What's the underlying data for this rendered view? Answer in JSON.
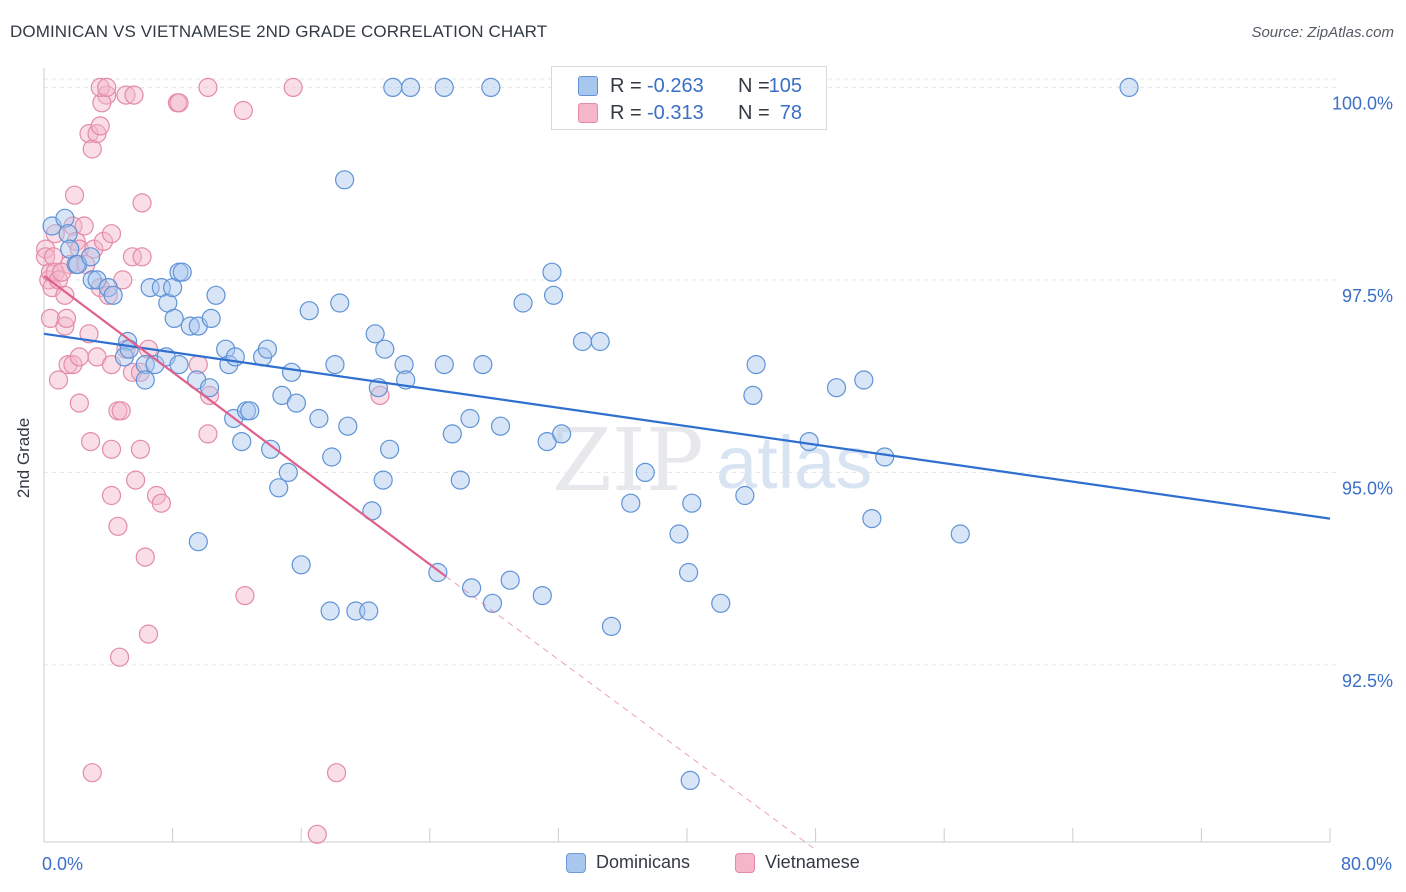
{
  "header": {
    "title": "DOMINICAN VS VIETNAMESE 2ND GRADE CORRELATION CHART",
    "source": "Source: ZipAtlas.com"
  },
  "watermark": "ZIPatlas",
  "stats": [
    {
      "label_r": "R =",
      "r": "-0.263",
      "label_n": "N =",
      "n": "105",
      "color": "#a9c6ee"
    },
    {
      "label_r": "R =",
      "r": "-0.313",
      "label_n": "N =",
      "n": "78",
      "color": "#f5b6c9"
    }
  ],
  "legend": {
    "items": [
      {
        "label": "Dominicans",
        "color": "#a9c6ee",
        "border": "#6b9bd8"
      },
      {
        "label": "Vietnamese",
        "color": "#f5b6c9",
        "border": "#e48aa6"
      }
    ]
  },
  "colors": {
    "blue_fill": "#a9c6ee",
    "blue_stroke": "#5f93d6",
    "blue_line": "#2f6fd0",
    "pink_fill": "#f5b6c9",
    "pink_stroke": "#e38ba7",
    "pink_line": "#e0608c",
    "tick_text": "#3a6fc8",
    "grid": "#e3e6ea"
  },
  "chart_data": {
    "type": "scatter",
    "title": "DOMINICAN VS VIETNAMESE 2ND GRADE CORRELATION CHART",
    "xlabel": "",
    "ylabel": "2nd Grade",
    "xlim": [
      0,
      80
    ],
    "ylim": [
      90.2,
      100.2
    ],
    "x_tick_labels": [
      {
        "value": 0,
        "label": "0.0%"
      },
      {
        "value": 80,
        "label": "80.0%"
      }
    ],
    "x_minor_ticks": [
      0,
      8,
      16,
      24,
      32,
      40,
      48,
      56,
      64,
      72,
      80
    ],
    "y_ticks": [
      {
        "value": 92.5,
        "label": "92.5%"
      },
      {
        "value": 95.0,
        "label": "95.0%"
      },
      {
        "value": 97.5,
        "label": "97.5%"
      },
      {
        "value": 100.0,
        "label": "100.0%"
      }
    ],
    "grid": true,
    "legend_position": "bottom",
    "series": [
      {
        "name": "Dominicans",
        "points": [
          [
            0.5,
            98.2
          ],
          [
            1.3,
            98.3
          ],
          [
            1.5,
            98.1
          ],
          [
            1.6,
            97.9
          ],
          [
            2.0,
            97.7
          ],
          [
            2.1,
            97.7
          ],
          [
            2.9,
            97.8
          ],
          [
            3.0,
            97.5
          ],
          [
            3.3,
            97.5
          ],
          [
            4.0,
            97.4
          ],
          [
            4.3,
            97.3
          ],
          [
            5.2,
            96.7
          ],
          [
            5.0,
            96.5
          ],
          [
            5.3,
            96.6
          ],
          [
            6.3,
            96.4
          ],
          [
            6.3,
            96.2
          ],
          [
            6.9,
            96.4
          ],
          [
            7.6,
            96.5
          ],
          [
            6.6,
            97.4
          ],
          [
            7.3,
            97.4
          ],
          [
            7.7,
            97.2
          ],
          [
            8.0,
            97.4
          ],
          [
            8.1,
            97.0
          ],
          [
            8.4,
            97.6
          ],
          [
            8.6,
            97.6
          ],
          [
            8.4,
            96.4
          ],
          [
            9.1,
            96.9
          ],
          [
            9.6,
            96.9
          ],
          [
            10.4,
            97.0
          ],
          [
            10.7,
            97.3
          ],
          [
            11.3,
            96.6
          ],
          [
            11.5,
            96.4
          ],
          [
            11.9,
            96.5
          ],
          [
            9.5,
            96.2
          ],
          [
            10.3,
            96.1
          ],
          [
            11.8,
            95.7
          ],
          [
            12.6,
            95.8
          ],
          [
            12.8,
            95.8
          ],
          [
            12.3,
            95.4
          ],
          [
            13.6,
            96.5
          ],
          [
            13.9,
            96.6
          ],
          [
            15.4,
            96.3
          ],
          [
            14.1,
            95.3
          ],
          [
            14.6,
            94.8
          ],
          [
            15.2,
            95.0
          ],
          [
            14.8,
            96.0
          ],
          [
            15.7,
            95.9
          ],
          [
            16.5,
            97.1
          ],
          [
            17.1,
            95.7
          ],
          [
            18.1,
            96.4
          ],
          [
            17.9,
            95.2
          ],
          [
            18.4,
            97.2
          ],
          [
            18.7,
            98.8
          ],
          [
            18.9,
            95.6
          ],
          [
            20.6,
            96.8
          ],
          [
            20.8,
            96.1
          ],
          [
            21.2,
            96.6
          ],
          [
            21.5,
            95.3
          ],
          [
            21.1,
            94.9
          ],
          [
            22.4,
            96.4
          ],
          [
            22.5,
            96.2
          ],
          [
            24.9,
            96.4
          ],
          [
            25.4,
            95.5
          ],
          [
            26.5,
            95.7
          ],
          [
            25.9,
            94.9
          ],
          [
            27.3,
            96.4
          ],
          [
            28.4,
            95.6
          ],
          [
            29.8,
            97.2
          ],
          [
            31.6,
            97.6
          ],
          [
            31.7,
            97.3
          ],
          [
            31.3,
            95.4
          ],
          [
            32.2,
            95.5
          ],
          [
            33.5,
            96.7
          ],
          [
            34.6,
            96.7
          ],
          [
            36.5,
            94.6
          ],
          [
            37.4,
            95.0
          ],
          [
            39.5,
            94.2
          ],
          [
            40.1,
            93.7
          ],
          [
            40.3,
            94.6
          ],
          [
            42.1,
            93.3
          ],
          [
            43.6,
            94.7
          ],
          [
            44.3,
            96.4
          ],
          [
            44.1,
            96.0
          ],
          [
            47.6,
            95.4
          ],
          [
            49.3,
            96.1
          ],
          [
            51.0,
            96.2
          ],
          [
            51.5,
            94.4
          ],
          [
            52.3,
            95.2
          ],
          [
            57.0,
            94.2
          ],
          [
            9.6,
            94.1
          ],
          [
            16.0,
            93.8
          ],
          [
            17.8,
            93.2
          ],
          [
            19.4,
            93.2
          ],
          [
            20.2,
            93.2
          ],
          [
            20.4,
            94.5
          ],
          [
            24.5,
            93.7
          ],
          [
            26.6,
            93.5
          ],
          [
            27.9,
            93.3
          ],
          [
            29.0,
            93.6
          ],
          [
            31.0,
            93.4
          ],
          [
            35.3,
            93.0
          ],
          [
            40.2,
            91.0
          ],
          [
            21.7,
            100.0
          ],
          [
            22.8,
            100.0
          ],
          [
            24.9,
            100.0
          ],
          [
            27.8,
            100.0
          ],
          [
            67.5,
            100.0
          ]
        ],
        "trend": {
          "from": [
            0,
            96.8
          ],
          "to": [
            80,
            94.4
          ],
          "style": "solid"
        }
      },
      {
        "name": "Vietnamese",
        "points": [
          [
            0.1,
            97.9
          ],
          [
            0.1,
            97.8
          ],
          [
            0.3,
            97.5
          ],
          [
            0.4,
            97.6
          ],
          [
            0.5,
            97.4
          ],
          [
            0.6,
            97.8
          ],
          [
            0.7,
            97.6
          ],
          [
            0.9,
            97.5
          ],
          [
            1.3,
            97.3
          ],
          [
            1.6,
            97.7
          ],
          [
            1.8,
            98.2
          ],
          [
            2.0,
            98.0
          ],
          [
            2.2,
            97.9
          ],
          [
            1.9,
            98.6
          ],
          [
            2.5,
            98.2
          ],
          [
            2.6,
            97.7
          ],
          [
            3.1,
            97.9
          ],
          [
            3.5,
            97.4
          ],
          [
            3.7,
            98.0
          ],
          [
            4.2,
            98.1
          ],
          [
            4.0,
            97.3
          ],
          [
            4.9,
            97.5
          ],
          [
            5.5,
            97.8
          ],
          [
            6.1,
            97.8
          ],
          [
            6.1,
            98.5
          ],
          [
            0.4,
            97.0
          ],
          [
            1.3,
            96.9
          ],
          [
            1.4,
            97.0
          ],
          [
            2.8,
            96.8
          ],
          [
            5.1,
            96.6
          ],
          [
            5.5,
            96.3
          ],
          [
            6.0,
            96.3
          ],
          [
            6.5,
            96.6
          ],
          [
            0.9,
            96.2
          ],
          [
            1.5,
            96.4
          ],
          [
            1.8,
            96.4
          ],
          [
            2.2,
            96.5
          ],
          [
            3.3,
            96.5
          ],
          [
            4.2,
            96.4
          ],
          [
            10.3,
            96.0
          ],
          [
            9.6,
            96.4
          ],
          [
            2.2,
            95.9
          ],
          [
            4.6,
            95.8
          ],
          [
            4.8,
            95.8
          ],
          [
            2.9,
            95.4
          ],
          [
            4.2,
            95.3
          ],
          [
            6.0,
            95.3
          ],
          [
            10.2,
            95.5
          ],
          [
            7.0,
            94.7
          ],
          [
            7.3,
            94.6
          ],
          [
            4.2,
            94.7
          ],
          [
            4.6,
            94.3
          ],
          [
            5.7,
            94.9
          ],
          [
            6.3,
            93.9
          ],
          [
            12.5,
            93.4
          ],
          [
            6.5,
            92.9
          ],
          [
            4.7,
            92.6
          ],
          [
            3.0,
            91.1
          ],
          [
            18.2,
            91.1
          ],
          [
            17.0,
            90.3
          ],
          [
            20.9,
            96.0
          ],
          [
            8.3,
            99.8
          ],
          [
            8.4,
            99.8
          ],
          [
            3.9,
            99.9
          ],
          [
            2.8,
            99.4
          ],
          [
            3.0,
            99.2
          ],
          [
            3.3,
            99.4
          ],
          [
            3.5,
            99.5
          ],
          [
            5.1,
            99.9
          ],
          [
            3.6,
            99.8
          ],
          [
            12.4,
            99.7
          ],
          [
            3.5,
            100.0
          ],
          [
            3.9,
            100.0
          ],
          [
            10.2,
            100.0
          ],
          [
            15.5,
            100.0
          ],
          [
            5.6,
            99.9
          ],
          [
            0.7,
            98.1
          ],
          [
            1.1,
            97.6
          ]
        ],
        "trend": {
          "from": [
            0,
            97.55
          ],
          "to": [
            25,
            93.65
          ],
          "dashed_to": [
            48,
            90.1
          ]
        }
      }
    ]
  }
}
